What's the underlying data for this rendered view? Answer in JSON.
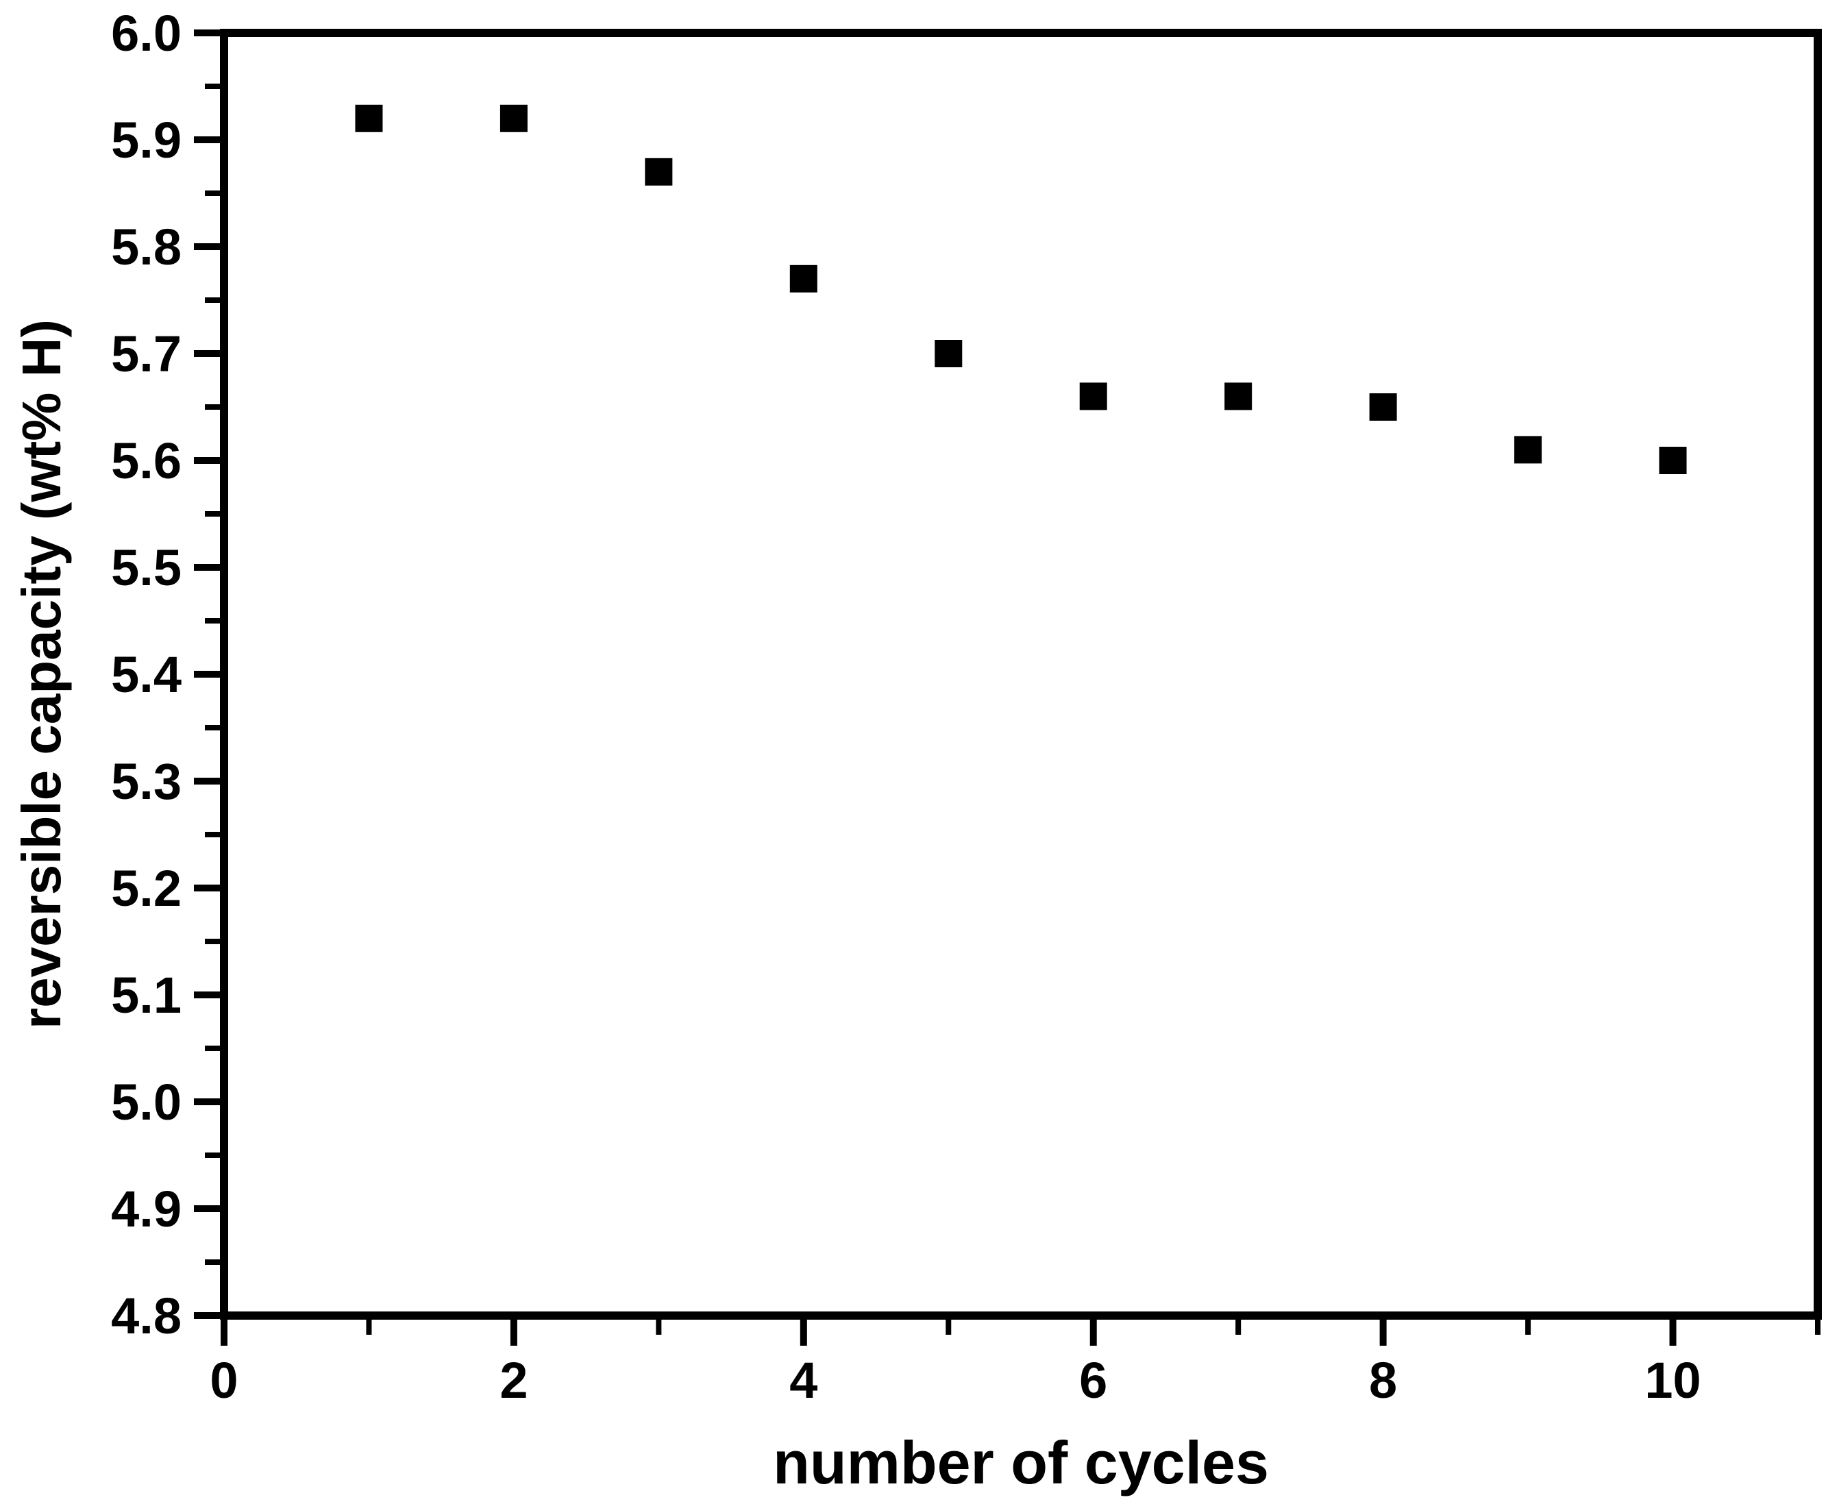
{
  "chart_data": {
    "type": "scatter",
    "x": [
      1,
      2,
      3,
      4,
      5,
      6,
      7,
      8,
      9,
      10
    ],
    "y": [
      5.92,
      5.92,
      5.87,
      5.77,
      5.7,
      5.66,
      5.66,
      5.65,
      5.61,
      5.6
    ],
    "title": "",
    "xlabel": "number of cycles",
    "ylabel": "reversible capacity (wt% H)",
    "xlim": [
      0,
      11
    ],
    "ylim": [
      4.8,
      6.0
    ],
    "x_ticks": {
      "major": [
        0,
        2,
        4,
        6,
        8,
        10
      ],
      "labels": [
        "0",
        "2",
        "4",
        "6",
        "8",
        "10"
      ],
      "minor": [
        1,
        3,
        5,
        7,
        9,
        11
      ]
    },
    "y_ticks": {
      "major": [
        4.8,
        4.9,
        5.0,
        5.1,
        5.2,
        5.3,
        5.4,
        5.5,
        5.6,
        5.7,
        5.8,
        5.9,
        6.0
      ],
      "labels": [
        "4.8",
        "4.9",
        "5.0",
        "5.1",
        "5.2",
        "5.3",
        "5.4",
        "5.5",
        "5.6",
        "5.7",
        "5.8",
        "5.9",
        "6.0"
      ],
      "minor": [
        4.85,
        4.95,
        5.05,
        5.15,
        5.25,
        5.35,
        5.45,
        5.55,
        5.65,
        5.75,
        5.85,
        5.95
      ]
    },
    "legend": "none",
    "grid": false,
    "marker": "filled-square",
    "colors": {
      "marker": "#000000",
      "axis": "#000000",
      "text": "#000000",
      "background": "#ffffff"
    }
  }
}
